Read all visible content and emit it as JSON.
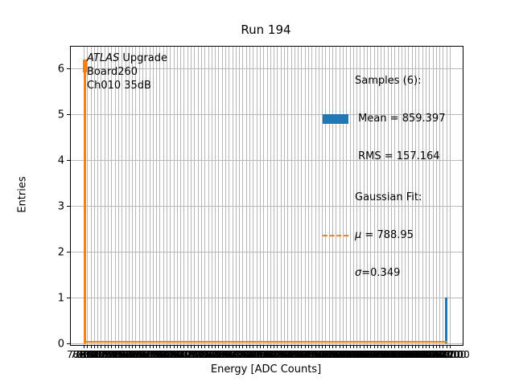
{
  "title": "Run 194",
  "xlabel": "Energy [ADC Counts]",
  "ylabel": "Entries",
  "annotation": {
    "line1_italic": "ATLAS",
    "line1_rest": " Upgrade",
    "line2": "Board260",
    "line3": "Ch010 35dB"
  },
  "legend": {
    "samples_header": "Samples (6):",
    "mean_label": " Mean = 859.397",
    "rms_label": " RMS = 157.164",
    "fit_header": "Gaussian Fit:",
    "mu_symbol": "μ",
    "mu_rest": " = 788.95",
    "sigma_symbol": "σ",
    "sigma_rest": "=0.349",
    "hist_color": "#1f77b4",
    "fit_color": "#ff7f0e"
  },
  "chart_data": {
    "type": "bar",
    "title": "Run 194",
    "xlabel": "Energy [ADC Counts]",
    "ylabel": "Entries",
    "ylim": [
      0,
      6.47
    ],
    "yticks": [
      0,
      1,
      2,
      3,
      4,
      5,
      6
    ],
    "grid": "both",
    "grid_color": "#b8b8b8",
    "x_ticks": {
      "start": 788,
      "end": 1212,
      "step": 4,
      "count": 107,
      "decimals": 2,
      "note": "107 bin-edge tick labels drawn horizontally; they overlap into an unreadable dark band"
    },
    "bars": [
      {
        "x": 788.95,
        "count": 5
      },
      {
        "x": 1208,
        "count": 1
      }
    ],
    "hist_color": "#1f77b4",
    "stats": {
      "samples": 6,
      "mean": 859.397,
      "rms": 157.164
    },
    "gaussian_fit": {
      "mu": 788.95,
      "sigma": 0.349,
      "peak_height": 6.2,
      "baseline": 0,
      "color": "#ff7f0e",
      "linestyle": "dashed"
    },
    "legend_position": "upper right",
    "legend_frame": false
  }
}
